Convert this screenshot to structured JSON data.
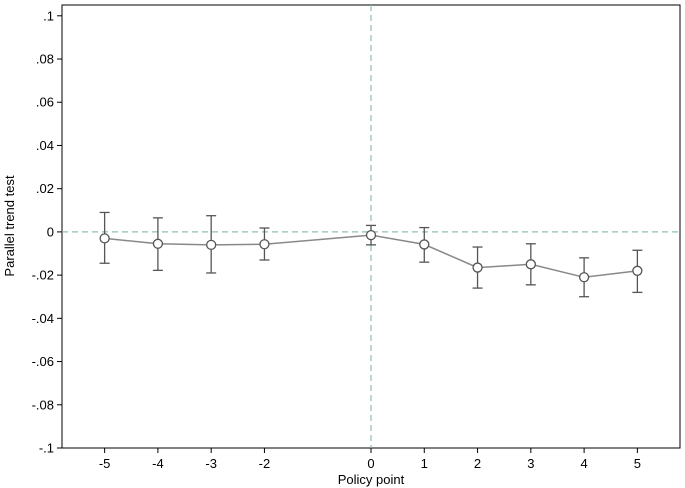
{
  "chart_data": {
    "type": "scatter",
    "title": "",
    "xlabel": "Policy point",
    "ylabel": "Parallel trend test",
    "xlim": [
      -5.8,
      5.8
    ],
    "ylim": [
      -0.1,
      0.105
    ],
    "xticks": [
      -5,
      -4,
      -3,
      -2,
      0,
      1,
      2,
      3,
      4,
      5
    ],
    "xtick_labels": [
      "-5",
      "-4",
      "-3",
      "-2",
      "0",
      "1",
      "2",
      "3",
      "4",
      "5"
    ],
    "yticks": [
      0.1,
      0.08,
      0.06,
      0.04,
      0.02,
      0,
      -0.02,
      -0.04,
      -0.06,
      -0.08,
      -0.1
    ],
    "ytick_labels": [
      ".1",
      ".08",
      ".06",
      ".04",
      ".02",
      "0",
      "-.02",
      "-.04",
      "-.06",
      "-.08",
      "-.1"
    ],
    "reference_lines": {
      "x": 0,
      "y": 0,
      "style": "dashed",
      "color": "#8fbfae"
    },
    "series": [
      {
        "x": [
          -5,
          -4,
          -3,
          -2,
          0,
          1,
          2,
          3,
          4,
          5
        ],
        "y": [
          -0.003,
          -0.0055,
          -0.006,
          -0.0057,
          -0.0015,
          -0.0058,
          -0.0165,
          -0.015,
          -0.021,
          -0.018
        ],
        "ci_low": [
          -0.0145,
          -0.0178,
          -0.019,
          -0.013,
          -0.006,
          -0.014,
          -0.026,
          -0.0245,
          -0.03,
          -0.028
        ],
        "ci_high": [
          0.009,
          0.0065,
          0.0075,
          0.0018,
          0.003,
          0.002,
          -0.007,
          -0.0055,
          -0.012,
          -0.0085
        ],
        "color": "#555555",
        "marker": "circle-hollow"
      }
    ],
    "grid": false,
    "legend": "none"
  }
}
